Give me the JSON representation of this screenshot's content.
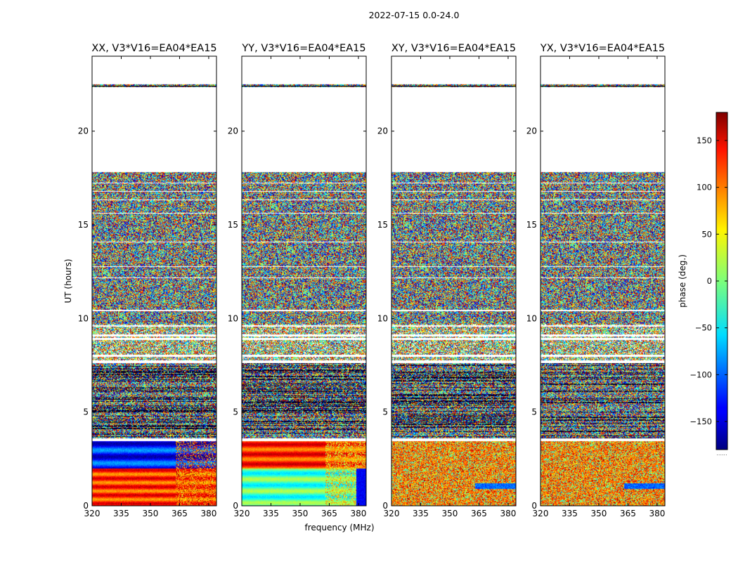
{
  "figure": {
    "suptitle": "2022-07-15 0.0-24.0",
    "ylabel": "UT (hours)",
    "xlabel": "frequency (MHz)",
    "colorbar_label": "phase (deg.)",
    "colorbar_ticks": [
      "150",
      "100",
      "50",
      "0",
      "−50",
      "−100",
      "−150"
    ],
    "colorbar_tick_values": [
      150,
      100,
      50,
      0,
      -50,
      -100,
      -150
    ],
    "colorbar_range": [
      -180,
      180
    ],
    "colorbar_footer": "......"
  },
  "chart_data": {
    "type": "heatmap",
    "x_ticks": [
      "320",
      "335",
      "350",
      "365",
      "380"
    ],
    "x_tick_values": [
      320,
      335,
      350,
      365,
      380
    ],
    "xlim": [
      320,
      384
    ],
    "y_ticks": [
      "0",
      "5",
      "10",
      "15",
      "20"
    ],
    "y_tick_values": [
      0,
      5,
      10,
      15,
      20
    ],
    "ylim": [
      0,
      24
    ],
    "data_rows_hours": [
      [
        0,
        3.6,
        "coherent"
      ],
      [
        3.6,
        7.6,
        "dense-noise"
      ],
      [
        7.6,
        9.7,
        "sparse-noise"
      ],
      [
        9.7,
        17.8,
        "noise"
      ],
      [
        22.35,
        22.5,
        "noise"
      ]
    ],
    "blank_bands_hours": [
      [
        3.45,
        3.6
      ],
      [
        7.6,
        7.75
      ],
      [
        7.95,
        8.05
      ],
      [
        8.85,
        8.95
      ],
      [
        9.05,
        9.15
      ],
      [
        9.55,
        9.65
      ],
      [
        10.4,
        10.45
      ],
      [
        12.15,
        12.2
      ],
      [
        12.75,
        12.8
      ],
      [
        14.05,
        14.1
      ],
      [
        15.6,
        15.65
      ],
      [
        16.3,
        16.35
      ],
      [
        16.75,
        16.8
      ],
      [
        17.2,
        17.25
      ]
    ],
    "panels": [
      {
        "name": "xx",
        "title": "XX, V3*V16=EA04*EA15",
        "pattern": "XX"
      },
      {
        "name": "yy",
        "title": "YY, V3*V16=EA04*EA15",
        "pattern": "YY"
      },
      {
        "name": "xy",
        "title": "XY, V3*V16=EA04*EA15",
        "pattern": "XY"
      },
      {
        "name": "yx",
        "title": "YX, V3*V16=EA04*EA15",
        "pattern": "YX"
      }
    ]
  }
}
